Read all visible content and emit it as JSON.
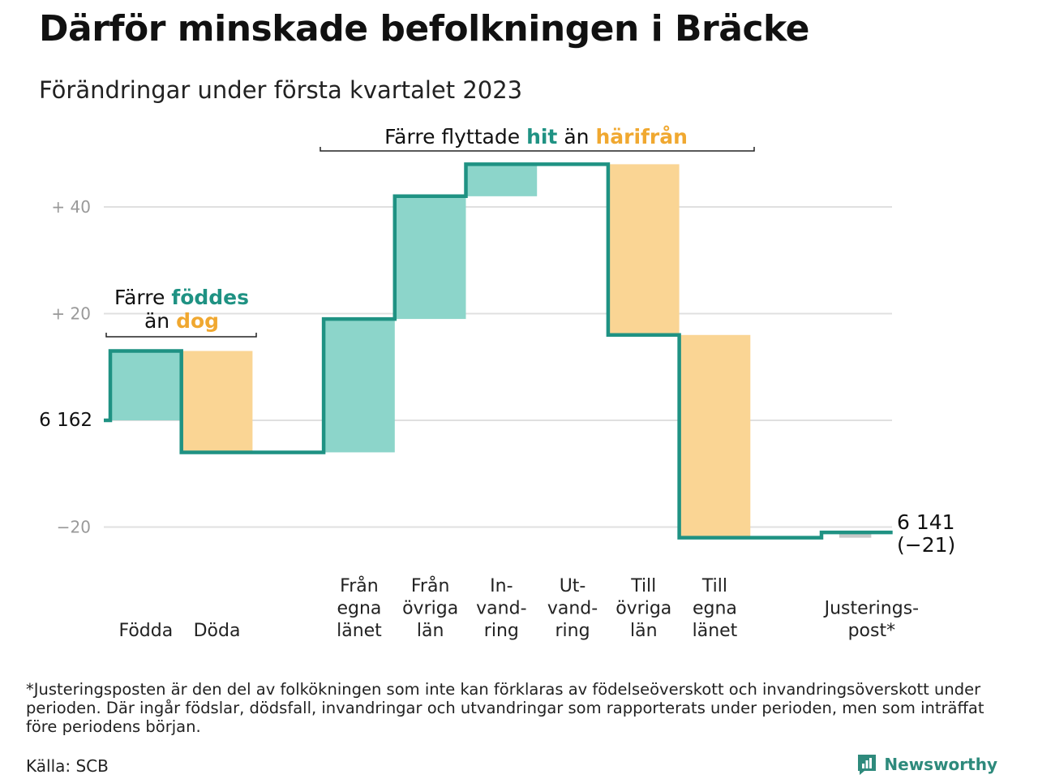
{
  "title": "Därför minskade befolkningen i Bräcke",
  "subtitle": "Förändringar under första kvartalet 2023",
  "colors": {
    "line": "#1f9283",
    "positive": "#8cd5ca",
    "negative": "#fad594",
    "neutral": "#c8c8c8",
    "grid": "#e0e0e0",
    "positive_text": "#1f9283",
    "negative_text": "#f0a830"
  },
  "chart_data": {
    "type": "bar",
    "subtype": "waterfall",
    "start_value": 6162,
    "start_label": "6 162",
    "end_value": 6141,
    "end_label": "6 141",
    "end_change_label": "(−21)",
    "ylim": [
      -25,
      50
    ],
    "yticks": [
      {
        "value": -20,
        "label": "−20"
      },
      {
        "value": 20,
        "label": "+ 20"
      },
      {
        "value": 40,
        "label": "+ 40"
      }
    ],
    "grid": true,
    "categories": [
      {
        "lines": [
          "Födda"
        ],
        "change": 13,
        "kind": "positive"
      },
      {
        "lines": [
          "Döda"
        ],
        "change": -19,
        "kind": "negative"
      },
      {
        "lines": [
          "Från",
          "egna",
          "länet"
        ],
        "change": 25,
        "kind": "positive"
      },
      {
        "lines": [
          "Från",
          "övriga",
          "län"
        ],
        "change": 23,
        "kind": "positive"
      },
      {
        "lines": [
          "In-",
          "vand-",
          "ring"
        ],
        "change": 6,
        "kind": "positive"
      },
      {
        "lines": [
          "Ut-",
          "vand-",
          "ring"
        ],
        "change": 0,
        "kind": "negative"
      },
      {
        "lines": [
          "Till",
          "övriga",
          "län"
        ],
        "change": -32,
        "kind": "negative"
      },
      {
        "lines": [
          "Till",
          "egna",
          "länet"
        ],
        "change": -38,
        "kind": "negative"
      },
      {
        "lines": [
          "Justerings-",
          "post*"
        ],
        "change": 1,
        "kind": "neutral"
      }
    ],
    "annotations": [
      {
        "id": "births",
        "parts": [
          {
            "line": 0,
            "text": "Färre ",
            "style": "plain"
          },
          {
            "line": 0,
            "text": "föddes",
            "style": "positive"
          },
          {
            "line": 1,
            "text": "än ",
            "style": "plain"
          },
          {
            "line": 1,
            "text": "dog",
            "style": "negative"
          }
        ]
      },
      {
        "id": "migration",
        "parts": [
          {
            "line": 0,
            "text": "Färre flyttade ",
            "style": "plain"
          },
          {
            "line": 0,
            "text": "hit",
            "style": "positive"
          },
          {
            "line": 0,
            "text": " än ",
            "style": "plain"
          },
          {
            "line": 0,
            "text": "härifrån",
            "style": "negative"
          }
        ]
      }
    ]
  },
  "footnote": "*Justeringsposten är den del av folkökningen som inte kan förklaras av födelseöverskott och invandringsöverskott under perioden. Där ingår födslar, dödsfall, invandringar och utvandringar som rapporterats under perioden, men som inträffat före periodens början.",
  "source": "Källa: SCB",
  "brand": {
    "name": "Newsworthy",
    "icon": "newsworthy-logo-icon"
  }
}
